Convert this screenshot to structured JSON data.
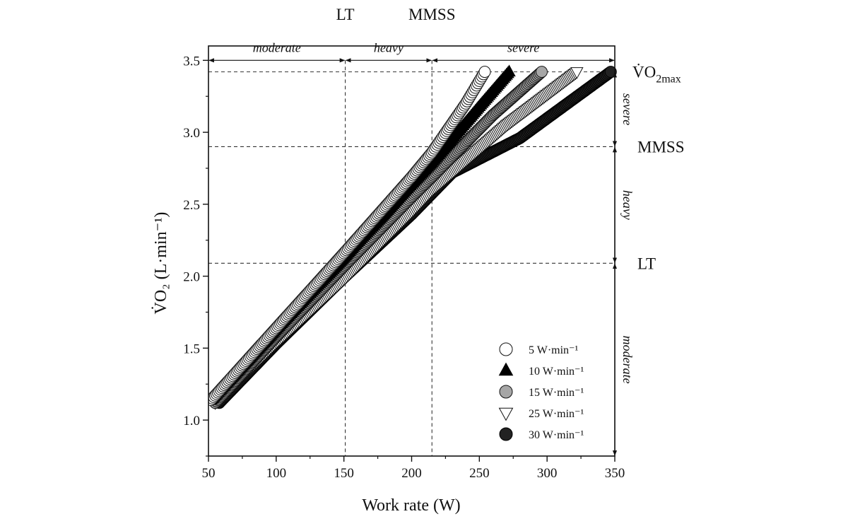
{
  "chart_data": {
    "type": "scatter",
    "xlabel": "Work rate (W)",
    "ylabel": "V̇O₂ (L·min⁻¹)",
    "xlim": [
      50,
      350
    ],
    "ylim": [
      0.75,
      3.6
    ],
    "x_ticks": [
      50,
      100,
      150,
      200,
      250,
      300,
      350
    ],
    "y_ticks": [
      1.0,
      1.5,
      2.0,
      2.5,
      3.0,
      3.5
    ],
    "x_tick_labels": [
      "50",
      "100",
      "150",
      "200",
      "250",
      "300",
      "350"
    ],
    "y_tick_labels": [
      "1.0",
      "1.5",
      "2.0",
      "2.5",
      "3.0",
      "3.5"
    ],
    "thresholds": {
      "LT": {
        "x": 151,
        "y": 2.09,
        "label": "LT"
      },
      "MMSS": {
        "x": 215,
        "y": 2.9,
        "label": "MMSS"
      },
      "VO2max": {
        "y": 3.42,
        "label_main": "V̇O",
        "label_sub": "2max"
      }
    },
    "x_domains": [
      {
        "label": "moderate",
        "from": 50,
        "to": 151
      },
      {
        "label": "heavy",
        "from": 151,
        "to": 215
      },
      {
        "label": "severe",
        "from": 215,
        "to": 350
      }
    ],
    "y_domains": [
      {
        "label": "severe",
        "from": 2.9,
        "to": 3.42
      },
      {
        "label": "heavy",
        "from": 2.09,
        "to": 2.9
      },
      {
        "label": "moderate",
        "from": 0.75,
        "to": 2.09
      }
    ],
    "legend_position": "bottom-right",
    "grid": false,
    "series": [
      {
        "name": "5 W·min⁻¹",
        "marker": "circle-open",
        "x": [
          52,
          100,
          150,
          200,
          215,
          240,
          254
        ],
        "y": [
          1.14,
          1.64,
          2.16,
          2.69,
          2.86,
          3.2,
          3.42
        ]
      },
      {
        "name": "10 W·min⁻¹",
        "marker": "triangle-up-filled",
        "x": [
          52,
          100,
          150,
          200,
          215,
          250,
          272
        ],
        "y": [
          1.14,
          1.63,
          2.13,
          2.64,
          2.79,
          3.18,
          3.42
        ]
      },
      {
        "name": "15 W·min⁻¹",
        "marker": "circle-gray",
        "x": [
          55,
          100,
          150,
          200,
          215,
          260,
          296
        ],
        "y": [
          1.12,
          1.58,
          2.07,
          2.55,
          2.69,
          3.12,
          3.42
        ]
      },
      {
        "name": "25 W·min⁻¹",
        "marker": "triangle-down-open",
        "x": [
          55,
          100,
          150,
          200,
          215,
          270,
          322
        ],
        "y": [
          1.12,
          1.54,
          1.98,
          2.45,
          2.6,
          3.05,
          3.42
        ]
      },
      {
        "name": "30 W·min⁻¹",
        "marker": "circle-dark",
        "x": [
          58,
          100,
          150,
          200,
          230,
          280,
          347
        ],
        "y": [
          1.12,
          1.53,
          1.99,
          2.43,
          2.72,
          2.96,
          3.42
        ]
      }
    ]
  }
}
